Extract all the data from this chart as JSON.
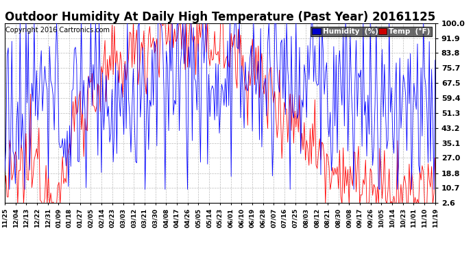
{
  "title": "Outdoor Humidity At Daily High Temperature (Past Year) 20161125",
  "copyright": "Copyright 2016 Cartronics.com",
  "yticks": [
    2.6,
    10.7,
    18.8,
    27.0,
    35.1,
    43.2,
    51.3,
    59.4,
    67.5,
    75.7,
    83.8,
    91.9,
    100.0
  ],
  "ylim": [
    2.6,
    100.0
  ],
  "xlabels": [
    "11/25",
    "12/04",
    "12/13",
    "12/22",
    "12/31",
    "01/09",
    "01/18",
    "01/27",
    "02/05",
    "02/14",
    "02/23",
    "03/03",
    "03/12",
    "03/21",
    "03/30",
    "04/08",
    "04/17",
    "04/26",
    "05/05",
    "05/14",
    "05/23",
    "06/01",
    "06/10",
    "06/19",
    "06/28",
    "07/07",
    "07/16",
    "07/25",
    "08/03",
    "08/12",
    "08/21",
    "08/30",
    "09/08",
    "09/17",
    "09/26",
    "10/05",
    "10/14",
    "10/23",
    "11/01",
    "11/10",
    "11/19"
  ],
  "humidity_color": "#0000ff",
  "temp_color": "#ff0000",
  "background_color": "#ffffff",
  "grid_color": "#bbbbbb",
  "legend_humidity_bg": "#0000cc",
  "legend_temp_bg": "#cc0000",
  "title_fontsize": 12,
  "copyright_fontsize": 7,
  "xtick_fontsize": 6.5,
  "ytick_fontsize": 8,
  "legend_fontsize": 7.5,
  "n_points": 366
}
